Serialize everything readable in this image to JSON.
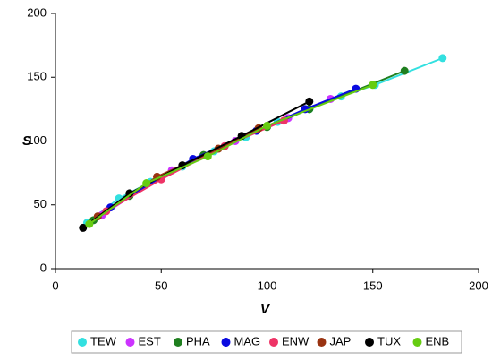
{
  "chart_data": {
    "type": "scatter",
    "x_label": "V",
    "y_label": "S",
    "xlim": [
      0,
      200
    ],
    "xticks": [
      0,
      50,
      100,
      150,
      200
    ],
    "ylim": [
      0,
      200
    ],
    "yticks": [
      0,
      50,
      100,
      150,
      200
    ],
    "grid": false,
    "legend": "bottom",
    "series": [
      {
        "name": "TEW",
        "color": "#33e0e0",
        "x": [
          15,
          30,
          45,
          60,
          75,
          90,
          105,
          120,
          135,
          151,
          183
        ],
        "values": [
          36,
          55,
          68,
          80,
          92,
          103,
          115,
          125,
          135,
          144,
          165
        ]
      },
      {
        "name": "EST",
        "color": "#cc33ff",
        "x": [
          22,
          55,
          85,
          110,
          130
        ],
        "values": [
          42,
          77,
          100,
          118,
          133
        ]
      },
      {
        "name": "PHA",
        "color": "#1f7f1f",
        "x": [
          18,
          35,
          70,
          100,
          120,
          165
        ],
        "values": [
          38,
          57,
          89,
          111,
          125,
          155
        ]
      },
      {
        "name": "MAG",
        "color": "#0a0ae0",
        "x": [
          26,
          65,
          95,
          118,
          142
        ],
        "values": [
          48,
          86,
          108,
          125,
          141
        ]
      },
      {
        "name": "ENW",
        "color": "#ee3366",
        "x": [
          24,
          50,
          80,
          108
        ],
        "values": [
          45,
          70,
          96,
          116
        ]
      },
      {
        "name": "JAP",
        "color": "#993311",
        "x": [
          20,
          48,
          77,
          96
        ],
        "values": [
          41,
          72,
          94,
          110
        ]
      },
      {
        "name": "TUX",
        "color": "#000000",
        "x": [
          13,
          35,
          60,
          88,
          120
        ],
        "values": [
          32,
          59,
          81,
          104,
          131
        ]
      },
      {
        "name": "ENB",
        "color": "#66cc11",
        "x": [
          16,
          43,
          72,
          100,
          150
        ],
        "values": [
          35,
          67,
          88,
          112,
          144
        ]
      }
    ]
  }
}
